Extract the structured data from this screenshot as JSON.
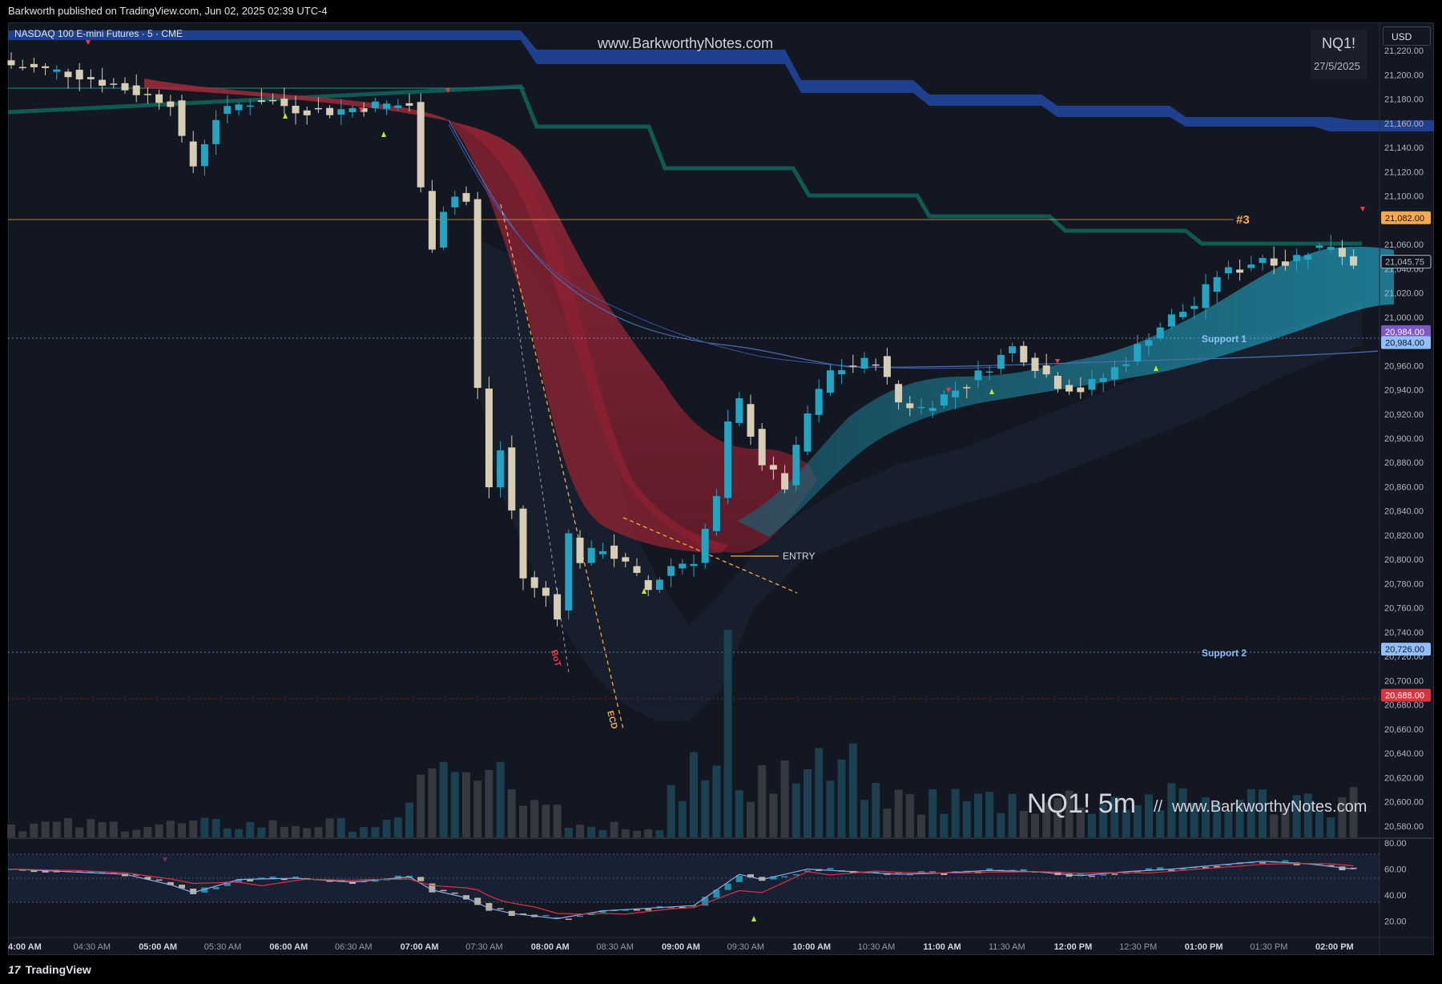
{
  "header": {
    "published": "Barkworth published on TradingView.com, Jun 02, 2025 02:39 UTC-4",
    "symbol_desc": "NASDAQ 100 E-mini Futures · 5 · CME",
    "watermark_url": "www.BarkworthyNotes.com",
    "symbol": "NQ1!",
    "date": "27/5/2025",
    "currency": "USD"
  },
  "overlay": {
    "big_title": "NQ1! 5m",
    "separator": "//",
    "big_url": "www.BarkworthyNotes.com"
  },
  "annotations": {
    "entry": "ENTRY",
    "level3": "#3",
    "support1": "Support 1",
    "support2": "Support 2",
    "bot": "BoT",
    "ecd": "ECD"
  },
  "price_axis": {
    "ticks": [
      "21,220.00",
      "21,200.00",
      "21,180.00",
      "21,160.00",
      "21,140.00",
      "21,120.00",
      "21,100.00",
      "21,060.00",
      "21,040.00",
      "21,020.00",
      "21,000.00",
      "20,960.00",
      "20,940.00",
      "20,920.00",
      "20,900.00",
      "20,880.00",
      "20,860.00",
      "20,840.00",
      "20,820.00",
      "20,800.00",
      "20,780.00",
      "20,760.00",
      "20,740.00",
      "20,720.00",
      "20,700.00",
      "20,680.00",
      "20,660.00",
      "20,640.00",
      "20,620.00",
      "20,600.00",
      "20,580.00"
    ],
    "badges": [
      {
        "label": "21,082.00",
        "price": 21082,
        "color": "#f7a94b",
        "text": "#131722"
      },
      {
        "label": "21,045.75",
        "price": 21045.75,
        "color": "#131722",
        "text": "#b2b5be",
        "border": "#b2b5be"
      },
      {
        "label": "20,984.00",
        "price": 20988,
        "color": "#7e57c2",
        "text": "#ffffff"
      },
      {
        "label": "20,984.00",
        "price": 20979,
        "color": "#90bff9",
        "text": "#131722"
      },
      {
        "label": "20,726.00",
        "price": 20726,
        "color": "#90bff9",
        "text": "#131722"
      },
      {
        "label": "20,688.00",
        "price": 20688,
        "color": "#e0323e",
        "text": "#ffffff"
      }
    ]
  },
  "oscillator_axis": {
    "ticks": [
      "80.00",
      "60.00",
      "40.00",
      "20.00"
    ]
  },
  "time_axis": {
    "ticks": [
      {
        "label": "4:00 AM",
        "bold": true
      },
      {
        "label": "04:30 AM",
        "bold": false
      },
      {
        "label": "05:00 AM",
        "bold": true
      },
      {
        "label": "05:30 AM",
        "bold": false
      },
      {
        "label": "06:00 AM",
        "bold": true
      },
      {
        "label": "06:30 AM",
        "bold": false
      },
      {
        "label": "07:00 AM",
        "bold": true
      },
      {
        "label": "07:30 AM",
        "bold": false
      },
      {
        "label": "08:00 AM",
        "bold": true
      },
      {
        "label": "08:30 AM",
        "bold": false
      },
      {
        "label": "09:00 AM",
        "bold": true
      },
      {
        "label": "09:30 AM",
        "bold": false
      },
      {
        "label": "10:00 AM",
        "bold": true
      },
      {
        "label": "10:30 AM",
        "bold": false
      },
      {
        "label": "11:00 AM",
        "bold": true
      },
      {
        "label": "11:30 AM",
        "bold": false
      },
      {
        "label": "12:00 PM",
        "bold": true
      },
      {
        "label": "12:30 PM",
        "bold": false
      },
      {
        "label": "01:00 PM",
        "bold": true
      },
      {
        "label": "01:30 PM",
        "bold": false
      },
      {
        "label": "02:00 PM",
        "bold": true
      }
    ]
  },
  "footer": {
    "brand": "TradingView"
  },
  "colors": {
    "background": "#131722",
    "up_candle": "#22a5c3",
    "down_candle": "#d6cdb4",
    "bear_band": "#a12a3a",
    "bull_band": "#1e8a9c",
    "resistance_blue": "#1f3f8f",
    "green_step": "#0f5a52",
    "level_line": "#f7a94b"
  },
  "chart_data": {
    "type": "candlestick",
    "title": "NASDAQ 100 E-mini Futures · 5 · CME",
    "ylim": [
      20570,
      21230
    ],
    "oscillator_ylim": [
      10,
      80
    ],
    "levels": [
      {
        "label": "#3",
        "price": 21082
      },
      {
        "label": "Support 1",
        "price": 20984
      },
      {
        "label": "Support 2",
        "price": 20726
      },
      {
        "label": "ENTRY",
        "price": 20805
      }
    ],
    "close_path": [
      [
        0,
        21208
      ],
      [
        6,
        21200
      ],
      [
        12,
        21183
      ],
      [
        14,
        21178
      ],
      [
        15,
        21145
      ],
      [
        16,
        21125
      ],
      [
        18,
        21165
      ],
      [
        20,
        21175
      ],
      [
        22,
        21180
      ],
      [
        25,
        21172
      ],
      [
        28,
        21170
      ],
      [
        32,
        21175
      ],
      [
        35,
        21175
      ],
      [
        36,
        21105
      ],
      [
        37,
        21060
      ],
      [
        38,
        21090
      ],
      [
        39,
        21100
      ],
      [
        40,
        21095
      ],
      [
        41,
        20940
      ],
      [
        42,
        20860
      ],
      [
        43,
        20890
      ],
      [
        44,
        20840
      ],
      [
        45,
        20785
      ],
      [
        46,
        20775
      ],
      [
        47,
        20770
      ],
      [
        48,
        20755
      ],
      [
        49,
        20820
      ],
      [
        50,
        20800
      ],
      [
        52,
        20810
      ],
      [
        54,
        20795
      ],
      [
        56,
        20775
      ],
      [
        58,
        20795
      ],
      [
        60,
        20800
      ],
      [
        62,
        20850
      ],
      [
        63,
        20910
      ],
      [
        64,
        20930
      ],
      [
        66,
        20880
      ],
      [
        68,
        20860
      ],
      [
        70,
        20920
      ],
      [
        72,
        20955
      ],
      [
        74,
        20960
      ],
      [
        76,
        20965
      ],
      [
        78,
        20930
      ],
      [
        80,
        20925
      ],
      [
        82,
        20935
      ],
      [
        84,
        20945
      ],
      [
        86,
        20960
      ],
      [
        88,
        20975
      ],
      [
        90,
        20960
      ],
      [
        92,
        20945
      ],
      [
        94,
        20940
      ],
      [
        96,
        20950
      ],
      [
        98,
        20965
      ],
      [
        100,
        20985
      ],
      [
        102,
        21000
      ],
      [
        104,
        21010
      ],
      [
        106,
        21035
      ],
      [
        108,
        21040
      ],
      [
        110,
        21050
      ],
      [
        112,
        21045
      ],
      [
        114,
        21055
      ],
      [
        116,
        21060
      ],
      [
        118,
        21045
      ]
    ],
    "oscillator_path": [
      [
        0,
        60
      ],
      [
        10,
        56
      ],
      [
        14,
        48
      ],
      [
        16,
        42
      ],
      [
        20,
        52
      ],
      [
        25,
        53
      ],
      [
        30,
        50
      ],
      [
        35,
        54
      ],
      [
        37,
        44
      ],
      [
        40,
        38
      ],
      [
        42,
        30
      ],
      [
        44,
        26
      ],
      [
        48,
        22
      ],
      [
        52,
        28
      ],
      [
        56,
        30
      ],
      [
        60,
        32
      ],
      [
        62,
        44
      ],
      [
        64,
        56
      ],
      [
        66,
        52
      ],
      [
        70,
        60
      ],
      [
        74,
        58
      ],
      [
        78,
        56
      ],
      [
        82,
        57
      ],
      [
        86,
        59
      ],
      [
        90,
        58
      ],
      [
        94,
        55
      ],
      [
        98,
        58
      ],
      [
        102,
        60
      ],
      [
        106,
        63
      ],
      [
        110,
        66
      ],
      [
        114,
        64
      ],
      [
        118,
        60
      ]
    ],
    "volume_hint": [
      {
        "bar_index": 38,
        "volume": "high"
      },
      {
        "bar_index": 43,
        "volume": "high"
      },
      {
        "bar_index": 63,
        "volume": "peak"
      }
    ]
  }
}
